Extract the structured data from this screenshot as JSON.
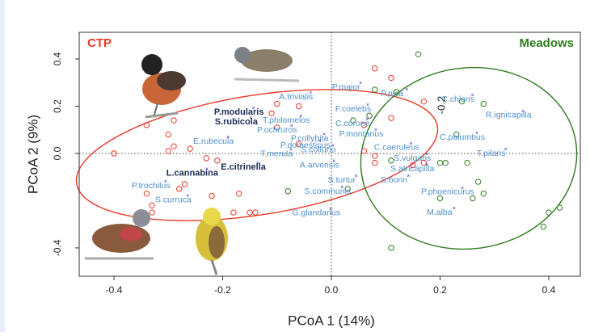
{
  "chart_data": {
    "type": "scatter",
    "x_label": "PCoA 1 (14%)",
    "y_label": "PCoA 2 (9%)",
    "xlim": [
      -0.464,
      0.458
    ],
    "ylim": [
      -0.52,
      0.513
    ],
    "xticks": [
      -0.4,
      -0.2,
      {
        "value": 0,
        "label": "0.0"
      },
      0.2,
      0.4
    ],
    "yticks": [
      -0.4,
      {
        "value": 0,
        "label": "0.0"
      },
      0.2,
      0.4
    ],
    "annotations": [
      "-0.2"
    ],
    "series": [
      {
        "name": "CTP",
        "color": "#e8392a",
        "x": [
          -0.4,
          -0.34,
          -0.3,
          -0.29,
          -0.29,
          -0.3,
          -0.26,
          -0.23,
          -0.21,
          -0.27,
          -0.28,
          -0.33,
          -0.34,
          -0.33,
          -0.22,
          -0.17,
          -0.18,
          -0.15,
          -0.14,
          -0.11,
          -0.1,
          -0.06,
          -0.06,
          -0.1,
          0.06,
          0.08,
          0.11,
          0.11,
          0.17,
          0.17,
          0.15,
          0.08,
          0.08,
          0.06
        ],
        "y": [
          0.0,
          0.12,
          0.08,
          0.14,
          0.03,
          0.01,
          0.02,
          -0.02,
          -0.03,
          -0.13,
          -0.15,
          -0.22,
          -0.17,
          -0.25,
          -0.18,
          -0.17,
          -0.25,
          -0.25,
          -0.25,
          0.17,
          0.21,
          0.2,
          0.04,
          0.11,
          0.12,
          0.36,
          0.32,
          0.15,
          0.22,
          -0.04,
          -0.05,
          -0.04,
          -0.01,
          0.01
        ]
      },
      {
        "name": "Meadows",
        "color": "#2e7d1e",
        "x": [
          0.08,
          0.12,
          0.16,
          0.04,
          0.07,
          0.24,
          0.28,
          0.23,
          0.2,
          0.21,
          0.25,
          0.27,
          0.28,
          0.26,
          0.2,
          0.4,
          0.42,
          0.39,
          0.11,
          -0.08,
          0.03,
          0.11
        ],
        "y": [
          0.27,
          0.26,
          0.42,
          0.14,
          0.16,
          0.22,
          0.21,
          0.08,
          -0.04,
          -0.04,
          -0.04,
          -0.12,
          -0.17,
          -0.19,
          -0.19,
          -0.25,
          -0.23,
          -0.31,
          -0.4,
          -0.16,
          -0.15,
          -0.03
        ]
      }
    ],
    "species": [
      {
        "name": "P.major",
        "x": 0.027,
        "y": 0.28
      },
      {
        "name": "A.trivialis",
        "x": -0.065,
        "y": 0.239
      },
      {
        "name": "P.pica",
        "x": 0.112,
        "y": 0.253
      },
      {
        "name": "C.chloris",
        "x": 0.233,
        "y": 0.229
      },
      {
        "name": "R.ignicapilla",
        "x": 0.326,
        "y": 0.161
      },
      {
        "name": "P.modularis",
        "x": -0.17,
        "y": 0.174,
        "bold": true
      },
      {
        "name": "S.rubicola",
        "x": -0.175,
        "y": 0.133,
        "bold": true
      },
      {
        "name": "T.philomelos",
        "x": -0.083,
        "y": 0.14
      },
      {
        "name": "F.coelebs",
        "x": 0.04,
        "y": 0.188
      },
      {
        "name": "C.corone",
        "x": 0.039,
        "y": 0.126
      },
      {
        "name": "P.ochruros",
        "x": -0.1,
        "y": 0.099
      },
      {
        "name": "P.montanus",
        "x": 0.055,
        "y": 0.082
      },
      {
        "name": "C.palumbus",
        "x": 0.241,
        "y": 0.068
      },
      {
        "name": "E.rubecula",
        "x": -0.217,
        "y": 0.051
      },
      {
        "name": "P.collybita",
        "x": -0.04,
        "y": 0.062
      },
      {
        "name": "P.domesticus",
        "x": -0.048,
        "y": 0.034
      },
      {
        "name": "S.collurio",
        "x": -0.024,
        "y": 0.014
      },
      {
        "name": "T.merula",
        "x": -0.101,
        "y": -0.003
      },
      {
        "name": "C.caeruleus",
        "x": 0.12,
        "y": 0.024
      },
      {
        "name": "T.pilaris",
        "x": 0.294,
        "y": 0
      },
      {
        "name": "A.arvensis",
        "x": -0.022,
        "y": -0.051
      },
      {
        "name": "L.cannabina",
        "x": -0.256,
        "y": -0.085,
        "bold": true
      },
      {
        "name": "E.citrinella",
        "x": -0.162,
        "y": -0.058,
        "bold": true
      },
      {
        "name": "S.vulgaris",
        "x": 0.149,
        "y": -0.021
      },
      {
        "name": "S.atricapilla",
        "x": 0.149,
        "y": -0.065
      },
      {
        "name": "P.trochilus",
        "x": -0.332,
        "y": -0.137
      },
      {
        "name": "S.turtur",
        "x": 0.019,
        "y": -0.113
      },
      {
        "name": "S.borin",
        "x": 0.115,
        "y": -0.113
      },
      {
        "name": "S.communis",
        "x": -0.007,
        "y": -0.161
      },
      {
        "name": "S.curruca",
        "x": -0.291,
        "y": -0.198
      },
      {
        "name": "P.phoenicurus",
        "x": 0.214,
        "y": -0.164
      },
      {
        "name": "G.glandarius",
        "x": -0.028,
        "y": -0.253
      },
      {
        "name": "M.alba",
        "x": 0.199,
        "y": -0.25
      }
    ]
  }
}
